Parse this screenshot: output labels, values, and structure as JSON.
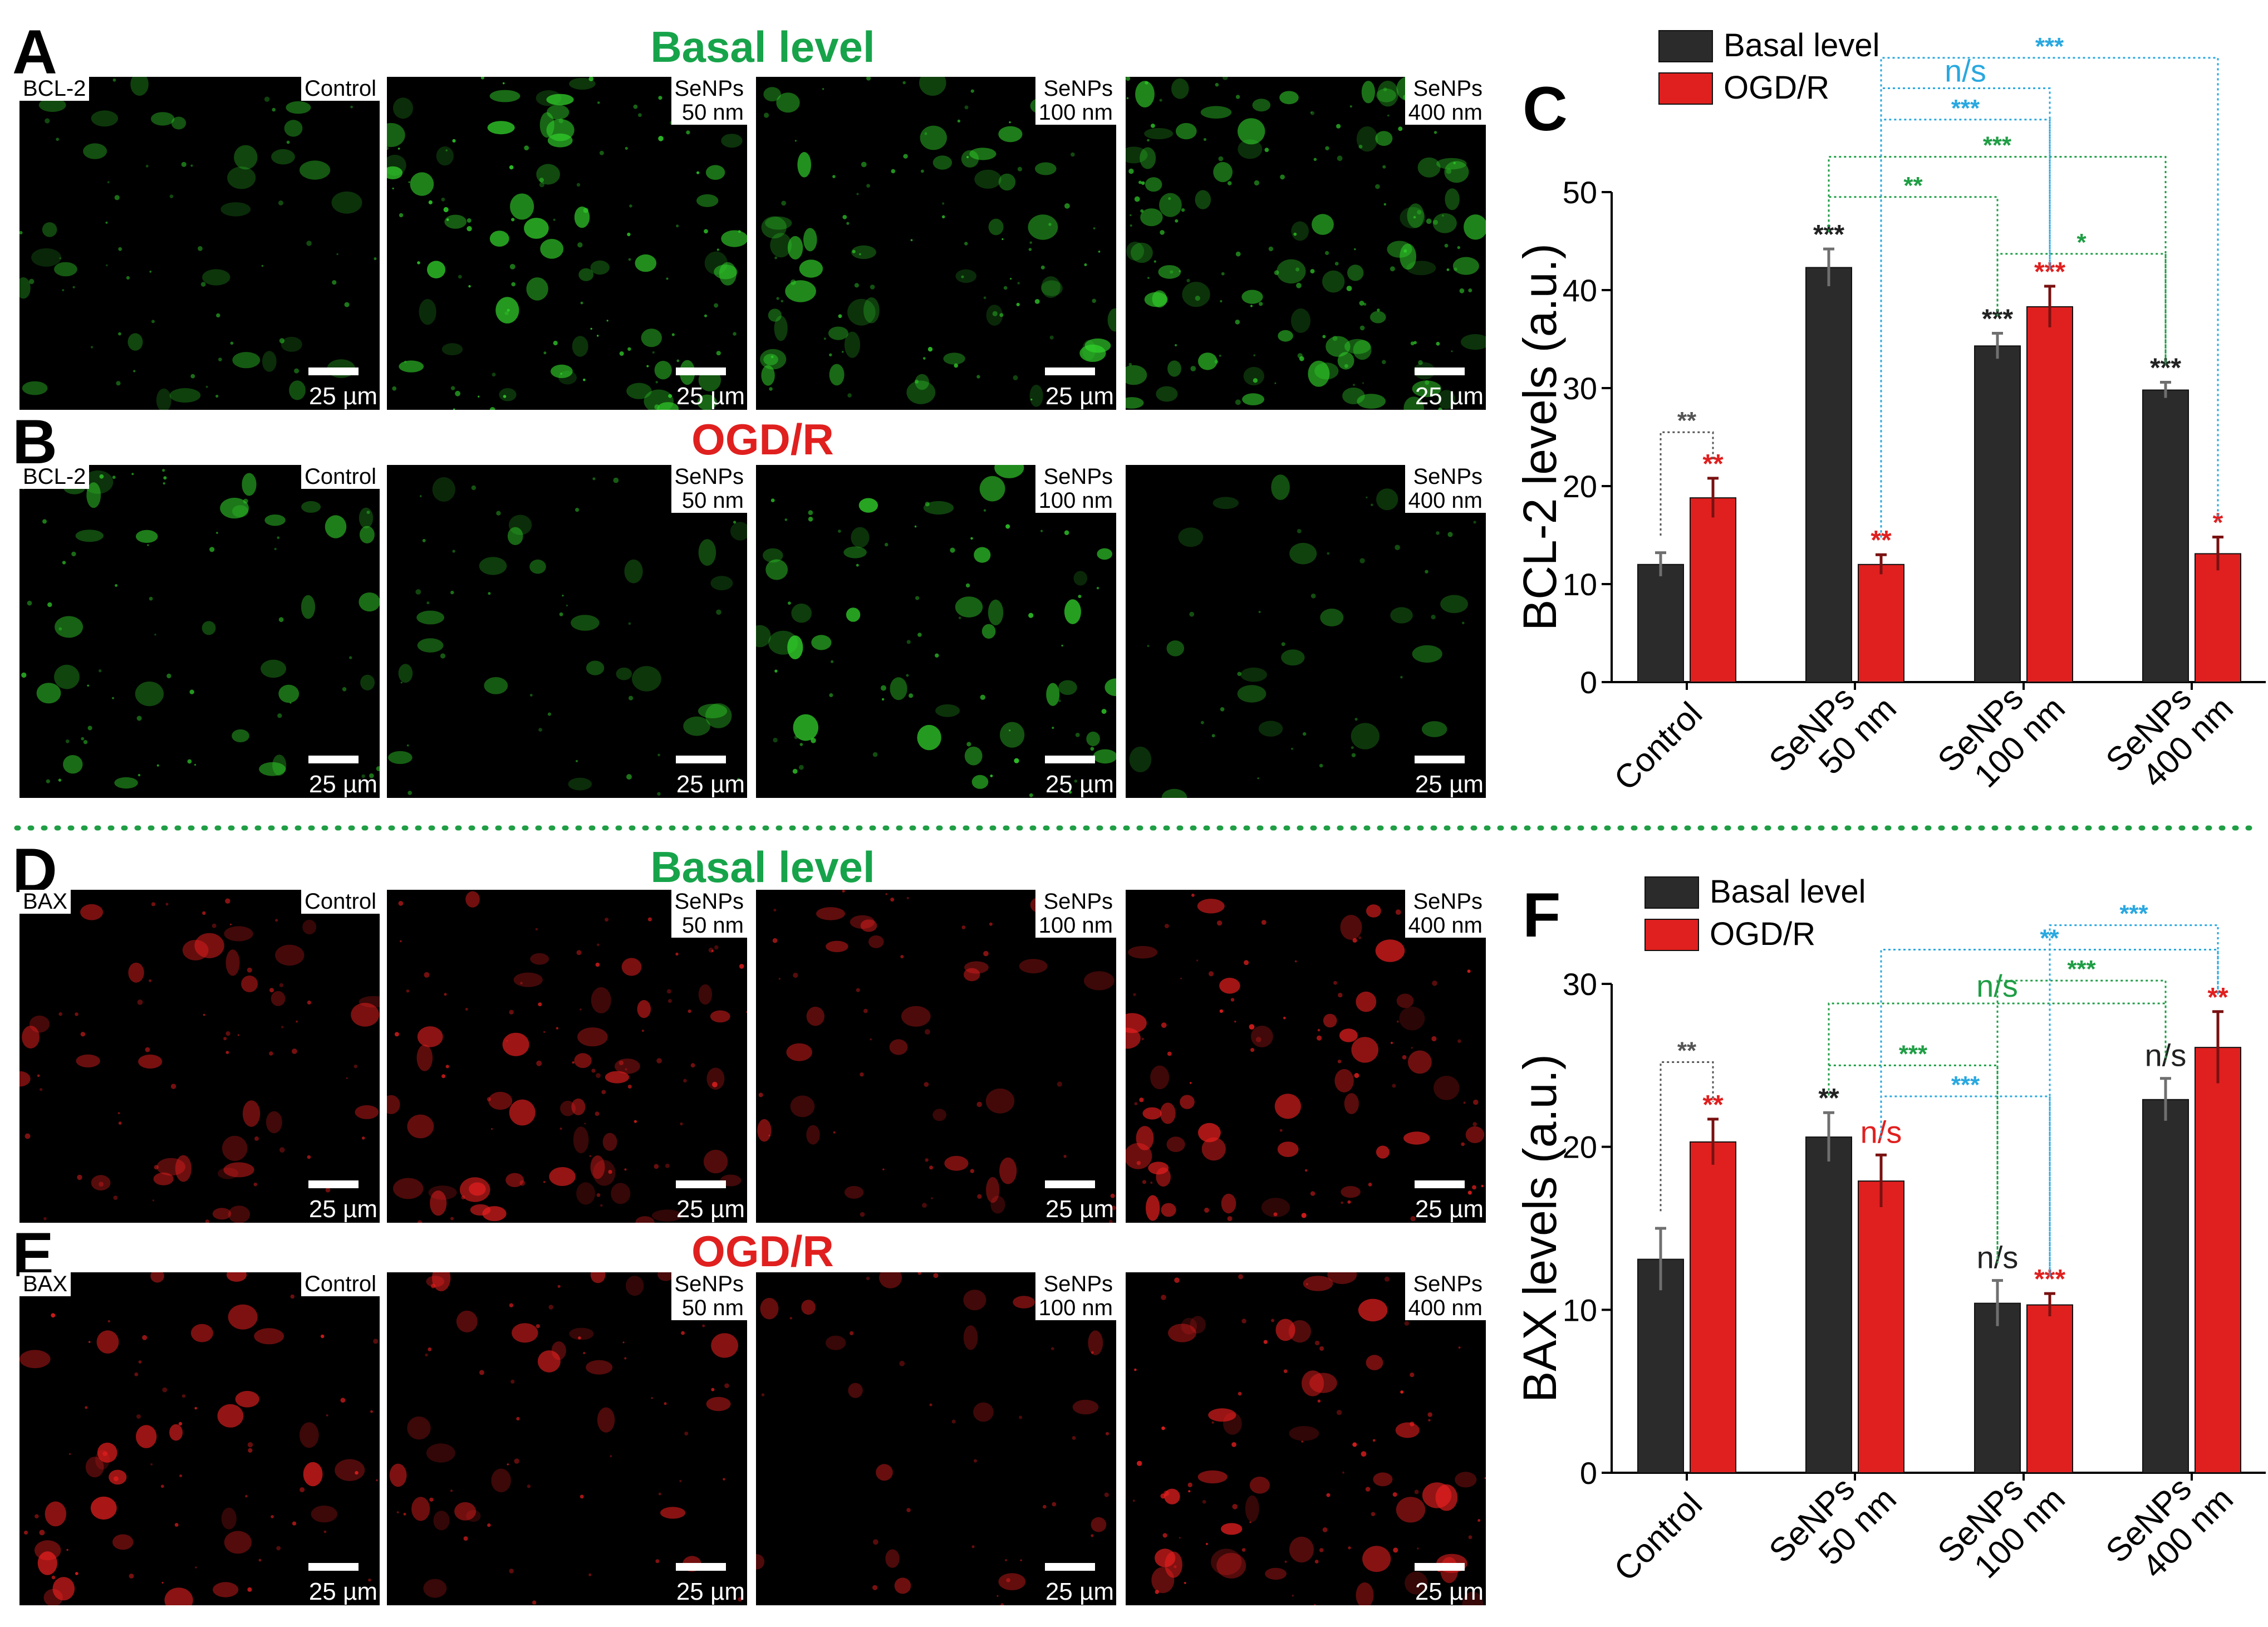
{
  "panel_letters": [
    "A",
    "B",
    "C",
    "D",
    "E",
    "F"
  ],
  "microscopy": {
    "bcl2_label": "BCL-2",
    "bax_label": "BAX",
    "row_titles": {
      "basal": "Basal level",
      "ogd": "OGD/R"
    },
    "scale_bar_text": "25 µm",
    "conditions": [
      {
        "line1": "Control",
        "line2": ""
      },
      {
        "line1": "SeNPs",
        "line2": "50 nm"
      },
      {
        "line1": "SeNPs",
        "line2": "100 nm"
      },
      {
        "line1": "SeNPs",
        "line2": "400 nm"
      }
    ]
  },
  "colors": {
    "basal_bar": "#2b2b2b",
    "ogd_bar": "#e0201f",
    "green_title": "#17a34a",
    "red_title": "#e0201f",
    "sig_blue": "#29a8e0",
    "sig_green": "#1f9e45",
    "divider": "#1f9e45"
  },
  "chart_data": [
    {
      "id": "C",
      "type": "bar",
      "categories": [
        "Control",
        "SeNPs 50 nm",
        "SeNPs 100 nm",
        "SeNPs 400 nm"
      ],
      "series": [
        {
          "name": "Basal level",
          "values": [
            12,
            42.3,
            34.3,
            29.8
          ],
          "errors": [
            1.2,
            1.9,
            1.3,
            0.8
          ]
        },
        {
          "name": "OGD/R",
          "values": [
            18.8,
            12,
            38.3,
            13.1
          ],
          "errors": [
            2.0,
            1.0,
            2.1,
            1.7
          ]
        }
      ],
      "ylabel": "BCL-2 levels (a.u.)",
      "ylim": [
        0,
        50
      ],
      "yticks": [
        0,
        10,
        20,
        30,
        40,
        50
      ],
      "legend": "top-left",
      "bar_marks": [
        [
          "",
          "**"
        ],
        [
          "***",
          "**"
        ],
        [
          "***",
          "***"
        ],
        [
          "***",
          "*"
        ]
      ],
      "brackets": [
        {
          "label": "**",
          "color": "gray",
          "from": [
            0,
            0
          ],
          "to": [
            0,
            1
          ],
          "level": 25.5
        },
        {
          "label": "**",
          "color": "green",
          "from": [
            1,
            0
          ],
          "to": [
            2,
            0
          ],
          "level": 49.5
        },
        {
          "label": "*",
          "color": "green",
          "from": [
            2,
            0
          ],
          "to": [
            3,
            0
          ],
          "level": 43.7
        },
        {
          "label": "***",
          "color": "green",
          "from": [
            1,
            0
          ],
          "to": [
            3,
            0
          ],
          "level": 53.6
        },
        {
          "label": "***",
          "color": "blue",
          "from": [
            1,
            1
          ],
          "to": [
            2,
            1
          ],
          "level": 57.4
        },
        {
          "label": "n/s",
          "color": "blue",
          "from": [
            1,
            1
          ],
          "to": [
            2,
            1
          ],
          "level": 60.6
        },
        {
          "label": "***",
          "color": "blue",
          "from": [
            1,
            1
          ],
          "to": [
            3,
            1
          ],
          "level": 63.7
        }
      ]
    },
    {
      "id": "F",
      "type": "bar",
      "categories": [
        "Control",
        "SeNPs 50 nm",
        "SeNPs 100 nm",
        "SeNPs 400 nm"
      ],
      "series": [
        {
          "name": "Basal level",
          "values": [
            13.1,
            20.6,
            10.4,
            22.9
          ],
          "errors": [
            1.9,
            1.5,
            1.4,
            1.3
          ]
        },
        {
          "name": "OGD/R",
          "values": [
            20.3,
            17.9,
            10.3,
            26.1
          ],
          "errors": [
            1.4,
            1.6,
            0.7,
            2.2
          ]
        }
      ],
      "ylabel": "BAX levels (a.u.)",
      "ylim": [
        0,
        30
      ],
      "yticks": [
        0,
        10,
        20,
        30
      ],
      "legend": "top-left",
      "bar_marks": [
        [
          "",
          "**"
        ],
        [
          "**",
          "n/s"
        ],
        [
          "n/s",
          "***"
        ],
        [
          "n/s",
          "**"
        ]
      ],
      "brackets": [
        {
          "label": "**",
          "color": "gray",
          "from": [
            0,
            0
          ],
          "to": [
            0,
            1
          ],
          "level": 25.2
        },
        {
          "label": "***",
          "color": "green",
          "from": [
            1,
            0
          ],
          "to": [
            2,
            0
          ],
          "level": 25.0
        },
        {
          "label": "***",
          "color": "blue",
          "from": [
            1,
            1
          ],
          "to": [
            2,
            1
          ],
          "level": 23.1
        },
        {
          "label": "n/s",
          "color": "green",
          "from": [
            1,
            0
          ],
          "to": [
            3,
            0
          ],
          "level": 28.8
        },
        {
          "label": "***",
          "color": "green",
          "from": [
            2,
            0
          ],
          "to": [
            3,
            0
          ],
          "level": 30.2
        },
        {
          "label": "**",
          "color": "blue",
          "from": [
            1,
            1
          ],
          "to": [
            3,
            1
          ],
          "level": 32.1
        },
        {
          "label": "***",
          "color": "blue",
          "from": [
            2,
            1
          ],
          "to": [
            3,
            1
          ],
          "level": 33.6
        }
      ]
    }
  ]
}
